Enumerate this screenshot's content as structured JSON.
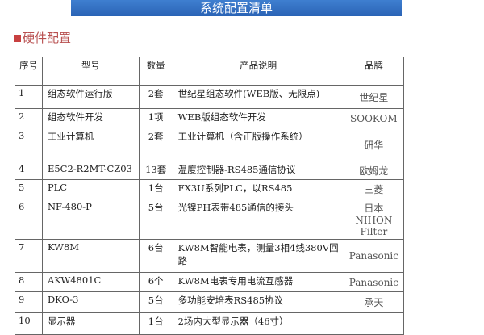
{
  "banner": "系统配置清单",
  "section": "硬件配置",
  "headers": [
    "序号",
    "型号",
    "数量",
    "产品说明",
    "品牌"
  ],
  "rows": [
    [
      "1",
      "组态软件运行版",
      "2套",
      "世纪星组态软件(WEB版、无限点)",
      "世纪星"
    ],
    [
      "2",
      "组态软件开发",
      "1项",
      "WEB版组态软件开发",
      "SOOKOM"
    ],
    [
      "3",
      "工业计算机",
      "2套",
      "工业计算机（含正版操作系统）",
      "研华"
    ],
    [
      "4",
      "E5C2-R2MT-CZ03",
      "13套",
      "温度控制器-RS485通信协议",
      "欧姆龙"
    ],
    [
      "5",
      "PLC",
      "1台",
      "FX3U系列PLC，以RS485",
      "三菱"
    ],
    [
      "6",
      "NF-480-P",
      "5台",
      "光镍PH表带485通信的接头",
      "日本NIHON Filter"
    ],
    [
      "7",
      "KW8M",
      "6台",
      "KW8M智能电表，测量3相4线380V回路",
      "Panasonic"
    ],
    [
      "8",
      "AKW4801C",
      "6个",
      "KW8M电表专用电流互感器",
      "Panasonic"
    ],
    [
      "9",
      "DKO-3",
      "5台",
      "多功能安培表RS485协议",
      "承天"
    ],
    [
      "10",
      "显示器",
      "1台",
      "2场内大型显示器（46寸）",
      ""
    ]
  ]
}
